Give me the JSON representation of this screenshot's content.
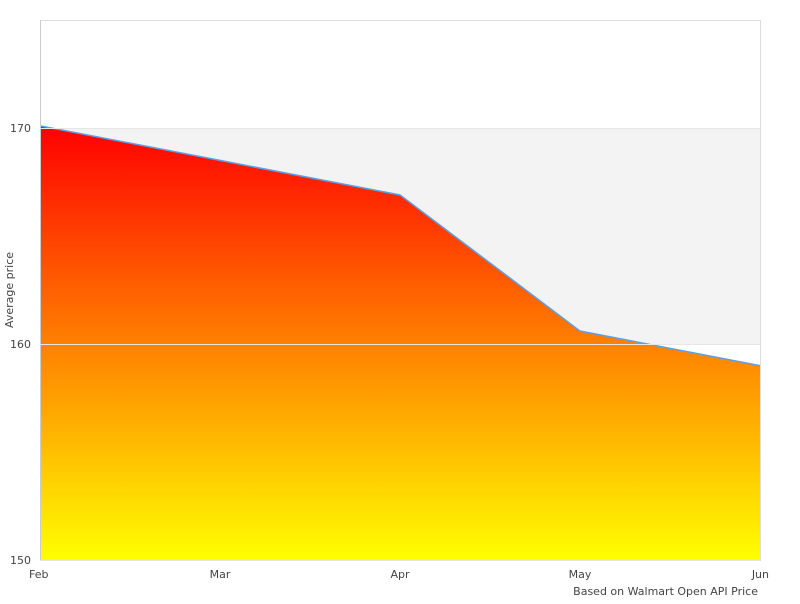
{
  "chart_data": {
    "type": "area",
    "title": "",
    "xlabel": "",
    "ylabel": "Average price",
    "caption": "Based on Walmart Open API Price",
    "categories": [
      "Feb",
      "Mar",
      "Apr",
      "May",
      "Jun"
    ],
    "series": [
      {
        "values": [
          170.1,
          168.5,
          166.9,
          160.6,
          159.0
        ]
      }
    ],
    "ylim": [
      150,
      175
    ],
    "yticks": [
      150,
      160,
      170
    ],
    "grid": "alternating horizontal bands",
    "colors": {
      "fill_top": "#ff0000",
      "fill_bottom": "#ffff00",
      "line": "#5aa0e8",
      "band": "#f3f3f3",
      "border": "#dddddd"
    }
  }
}
